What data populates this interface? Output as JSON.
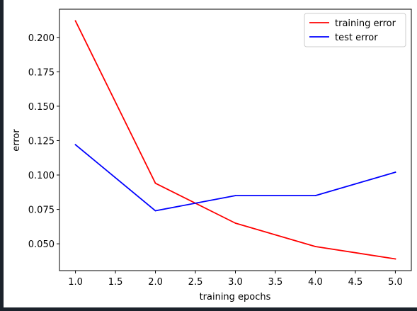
{
  "chart_data": {
    "type": "line",
    "title": "",
    "xlabel": "training epochs",
    "ylabel": "error",
    "x": [
      1.0,
      2.0,
      3.0,
      4.0,
      5.0
    ],
    "xlim": [
      0.8,
      5.2
    ],
    "ylim": [
      0.0305,
      0.2205
    ],
    "xticks": [
      "1.0",
      "1.5",
      "2.0",
      "2.5",
      "3.0",
      "3.5",
      "4.0",
      "4.5",
      "5.0"
    ],
    "yticks": [
      "0.050",
      "0.075",
      "0.100",
      "0.125",
      "0.150",
      "0.175",
      "0.200"
    ],
    "grid": false,
    "legend_position": "top-right",
    "series": [
      {
        "name": "training error",
        "color": "#ff0000",
        "values": [
          0.212,
          0.094,
          0.065,
          0.048,
          0.039
        ]
      },
      {
        "name": "test error",
        "color": "#0000ff",
        "values": [
          0.122,
          0.074,
          0.085,
          0.085,
          0.102
        ]
      }
    ]
  }
}
